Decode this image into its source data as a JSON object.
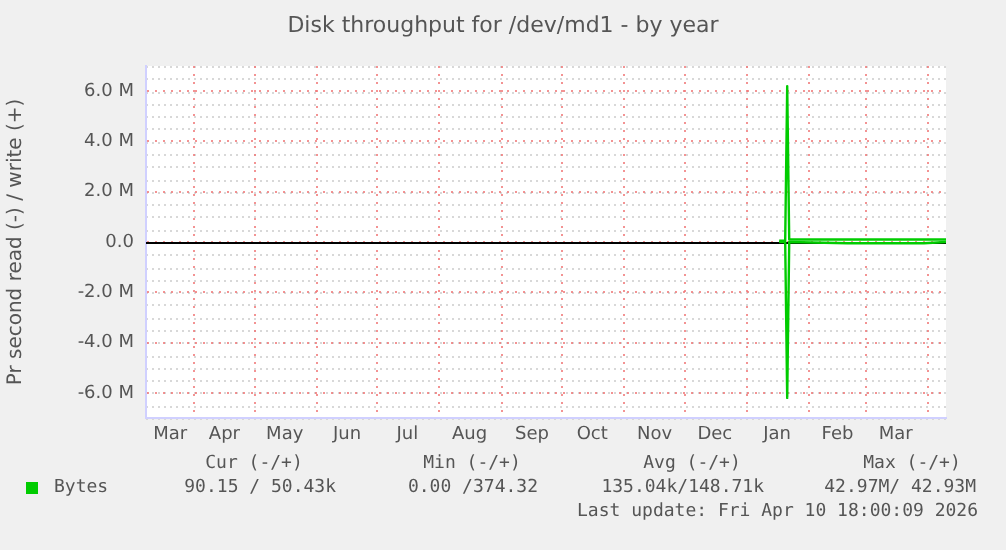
{
  "chart_data": {
    "type": "line",
    "title": "Disk throughput for /dev/md1 - by year",
    "ylabel": "Pr second read (-) / write (+)",
    "xlim": [
      "2025-03-08",
      "2026-04-10"
    ],
    "xticks": [
      {
        "value": "2025-03-20",
        "label": "Mar"
      },
      {
        "value": "2025-04-01",
        "label": null
      },
      {
        "value": "2025-04-16",
        "label": "Apr"
      },
      {
        "value": "2025-05-01",
        "label": null
      },
      {
        "value": "2025-05-16",
        "label": "May"
      },
      {
        "value": "2025-06-01",
        "label": null
      },
      {
        "value": "2025-06-16",
        "label": "Jun"
      },
      {
        "value": "2025-07-01",
        "label": null
      },
      {
        "value": "2025-07-16",
        "label": "Jul"
      },
      {
        "value": "2025-08-01",
        "label": null
      },
      {
        "value": "2025-08-16",
        "label": "Aug"
      },
      {
        "value": "2025-09-01",
        "label": null
      },
      {
        "value": "2025-09-16",
        "label": "Sep"
      },
      {
        "value": "2025-10-01",
        "label": null
      },
      {
        "value": "2025-10-16",
        "label": "Oct"
      },
      {
        "value": "2025-11-01",
        "label": null
      },
      {
        "value": "2025-11-16",
        "label": "Nov"
      },
      {
        "value": "2025-12-01",
        "label": null
      },
      {
        "value": "2025-12-16",
        "label": "Dec"
      },
      {
        "value": "2026-01-01",
        "label": null
      },
      {
        "value": "2026-01-16",
        "label": "Jan"
      },
      {
        "value": "2026-02-01",
        "label": null
      },
      {
        "value": "2026-02-15",
        "label": "Feb"
      },
      {
        "value": "2026-03-01",
        "label": null
      },
      {
        "value": "2026-03-16",
        "label": "Mar"
      },
      {
        "value": "2026-04-01",
        "label": null
      }
    ],
    "ylim": [
      -7000000,
      7000000
    ],
    "yticks": [
      {
        "value": -6000000,
        "label": "-6.0 M"
      },
      {
        "value": -4000000,
        "label": "-4.0 M"
      },
      {
        "value": -2000000,
        "label": "-2.0 M"
      },
      {
        "value": 0,
        "label": "0.0"
      },
      {
        "value": 2000000,
        "label": "2.0 M"
      },
      {
        "value": 4000000,
        "label": "4.0 M"
      },
      {
        "value": 6000000,
        "label": "6.0 M"
      }
    ],
    "grid": true,
    "ref_lines": [
      {
        "axis": "y",
        "value": 0,
        "color": "#000000"
      }
    ],
    "legend": "bottom left",
    "marker": "none",
    "line_style": "solid",
    "series": [
      {
        "name": "Bytes",
        "color": "#00cc00",
        "x": [
          "2026-01-17",
          "2026-01-20",
          "2026-01-21",
          "2026-01-22",
          "2026-01-27",
          "2026-02-24",
          "2026-03-01",
          "2026-04-10"
        ],
        "values": [
          50000,
          50000,
          6200000,
          100000,
          100000,
          100000,
          100000,
          100000
        ]
      },
      {
        "color": "#00cc00",
        "x": [
          "2026-01-17",
          "2026-01-20",
          "2026-01-21",
          "2026-01-22",
          "2026-02-20",
          "2026-03-03",
          "2026-03-30",
          "2026-04-10"
        ],
        "values": [
          0,
          0,
          -6200000,
          0,
          -50000,
          -50000,
          -50000,
          0
        ]
      }
    ],
    "annotations": [
      "Cur (-/+)",
      "Min (-/+)",
      "Avg (-/+)",
      "Max (-/+)",
      "90.15 / 50.43k",
      "0.00 /374.32",
      "135.04k/148.71k",
      "42.97M/ 42.93M",
      "Last update: Fri Apr 10 18:00:09 2026"
    ]
  }
}
